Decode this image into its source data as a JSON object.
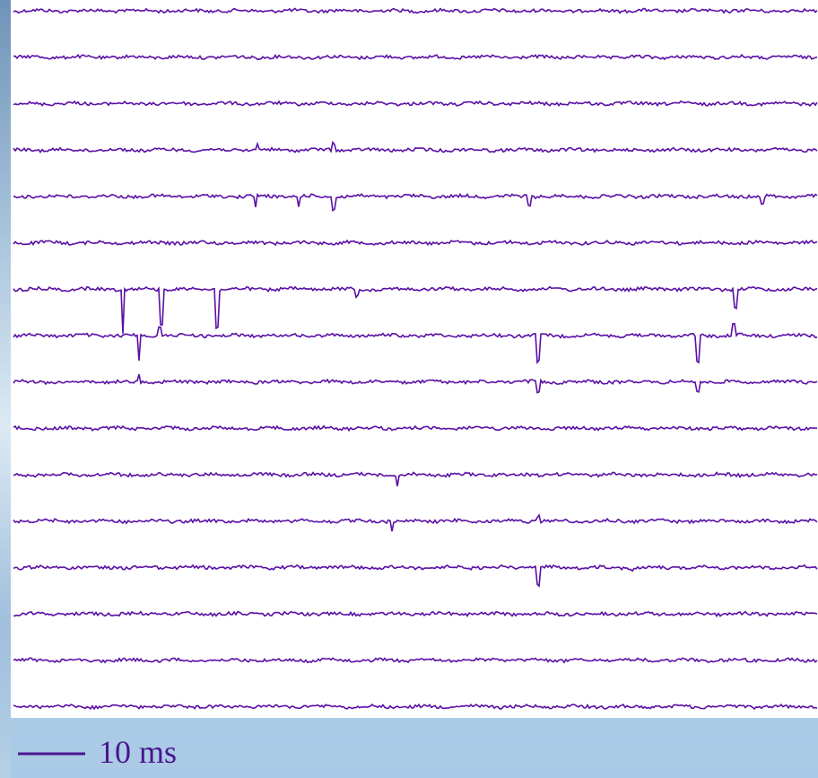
{
  "scale_bar": {
    "label": "10 ms"
  }
}
